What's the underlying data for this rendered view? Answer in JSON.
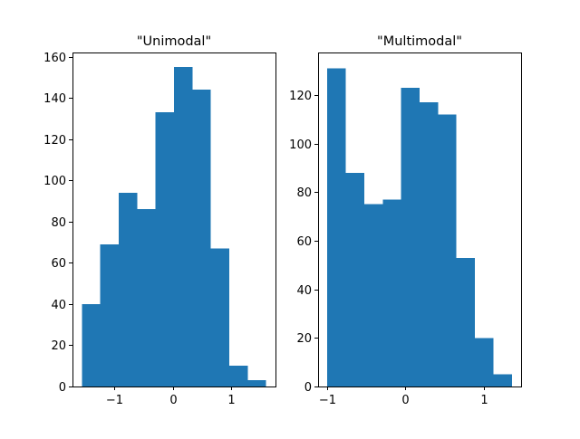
{
  "chart_data": [
    {
      "type": "bar",
      "subtype": "histogram",
      "title": "\"Unimodal\"",
      "xlabel": "",
      "ylabel": "",
      "color": "#1f77b4",
      "bin_edges": [
        -1.56,
        -1.244,
        -0.928,
        -0.612,
        -0.296,
        0.02,
        0.336,
        0.652,
        0.968,
        1.284,
        1.6
      ],
      "values": [
        40,
        69,
        94,
        86,
        133,
        155,
        144,
        67,
        10,
        3
      ],
      "xlim": [
        -1.72,
        1.76
      ],
      "ylim": [
        0,
        162
      ],
      "xticks": [
        -1,
        0,
        1
      ],
      "xtick_labels": [
        "−1",
        "0",
        "1"
      ],
      "yticks": [
        0,
        20,
        40,
        60,
        80,
        100,
        120,
        140,
        160
      ],
      "ytick_labels": [
        "0",
        "20",
        "40",
        "60",
        "80",
        "100",
        "120",
        "140",
        "160"
      ],
      "grid": false
    },
    {
      "type": "bar",
      "subtype": "histogram",
      "title": "\"Multimodal\"",
      "xlabel": "",
      "ylabel": "",
      "color": "#1f77b4",
      "bin_edges": [
        -1.0,
        -0.764,
        -0.528,
        -0.292,
        -0.056,
        0.18,
        0.416,
        0.652,
        0.888,
        1.124,
        1.36
      ],
      "values": [
        131,
        88,
        75,
        77,
        123,
        117,
        112,
        53,
        20,
        5
      ],
      "xlim": [
        -1.118,
        1.478
      ],
      "ylim": [
        0,
        137.5
      ],
      "xticks": [
        -1,
        0,
        1
      ],
      "xtick_labels": [
        "−1",
        "0",
        "1"
      ],
      "yticks": [
        0,
        20,
        40,
        60,
        80,
        100,
        120
      ],
      "ytick_labels": [
        "0",
        "20",
        "40",
        "60",
        "80",
        "100",
        "120"
      ],
      "grid": false
    }
  ]
}
